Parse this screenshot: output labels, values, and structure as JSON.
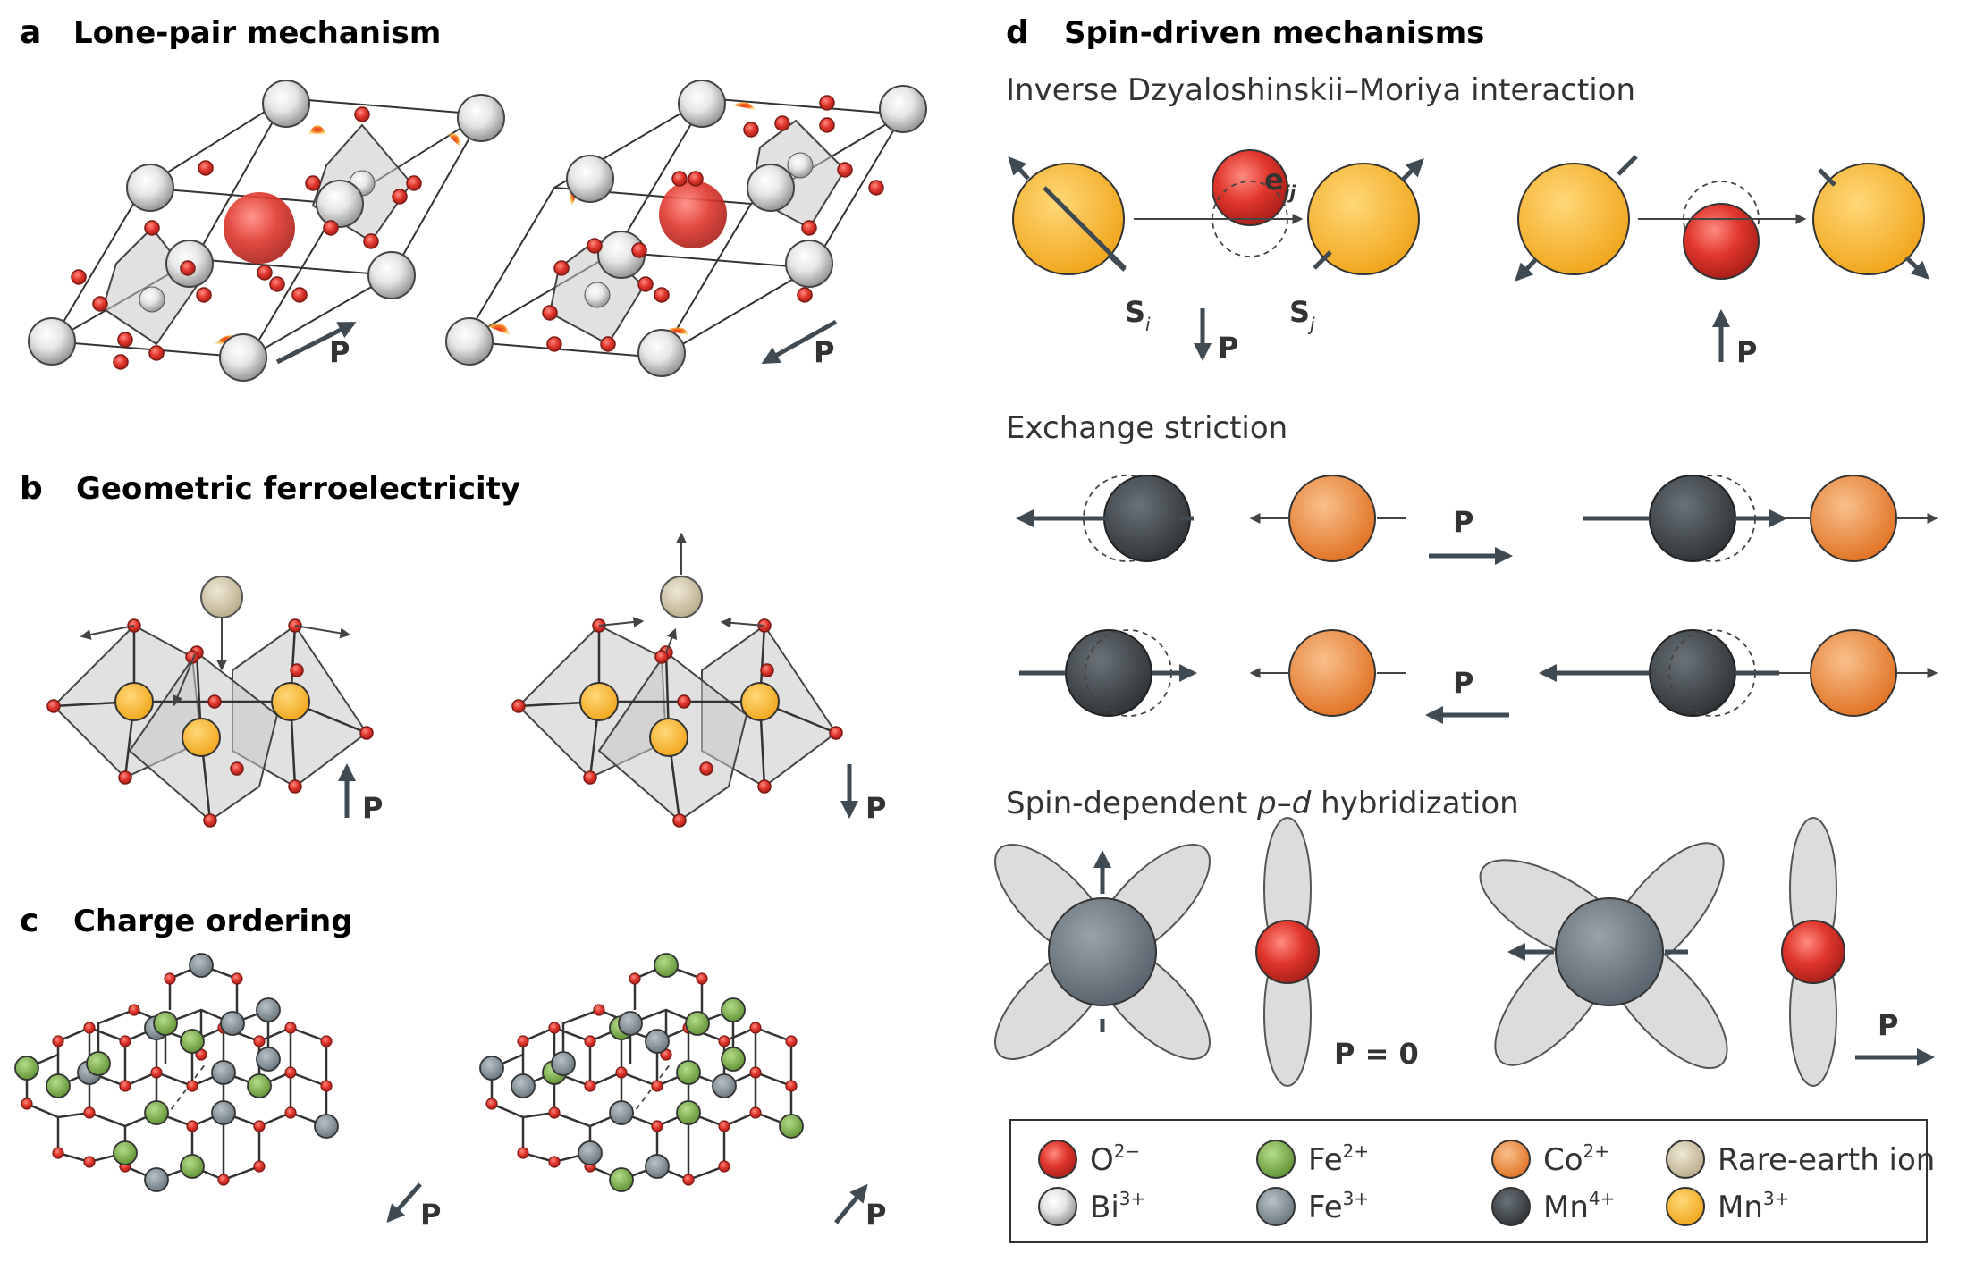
{
  "panels": {
    "a": {
      "letter": "a",
      "title": "Lone-pair mechanism",
      "p_left": "P",
      "p_right": "P"
    },
    "b": {
      "letter": "b",
      "title": "Geometric ferroelectricity",
      "p_left": "P",
      "p_right": "P"
    },
    "c": {
      "letter": "c",
      "title": "Charge ordering",
      "p_left": "P",
      "p_right": "P"
    },
    "d": {
      "letter": "d",
      "title": "Spin-driven mechanisms",
      "dm": {
        "title": "Inverse Dzyaloshinskii–Moriya interaction",
        "e_label": "e",
        "e_sub": "ij",
        "si": "S",
        "si_sub": "i",
        "sj": "S",
        "sj_sub": "j",
        "p_left": "P",
        "p_right": "P"
      },
      "exchange": {
        "title": "Exchange striction",
        "p_top": "P",
        "p_bottom": "P"
      },
      "hybrid": {
        "title_pre": "Spin-dependent ",
        "title_p": "p",
        "title_dash": "–",
        "title_d": "d",
        "title_post": " hybridization",
        "p_zero": "P = 0",
        "p_right": "P"
      }
    }
  },
  "legend": [
    {
      "ion": "O",
      "charge": "2−",
      "color": "#d8302a"
    },
    {
      "ion": "Fe",
      "charge": "2+",
      "color": "#7cb342"
    },
    {
      "ion": "Co",
      "charge": "2+",
      "color": "#ea8a3a"
    },
    {
      "ion": "Rare-earth ion",
      "charge": "",
      "color": "#d8cdb0"
    },
    {
      "ion": "Bi",
      "charge": "3+",
      "color": "#eeeeee"
    },
    {
      "ion": "Fe",
      "charge": "3+",
      "color": "#7f8a92"
    },
    {
      "ion": "Mn",
      "charge": "4+",
      "color": "#3e4347"
    },
    {
      "ion": "Mn",
      "charge": "3+",
      "color": "#f7b52c"
    }
  ]
}
